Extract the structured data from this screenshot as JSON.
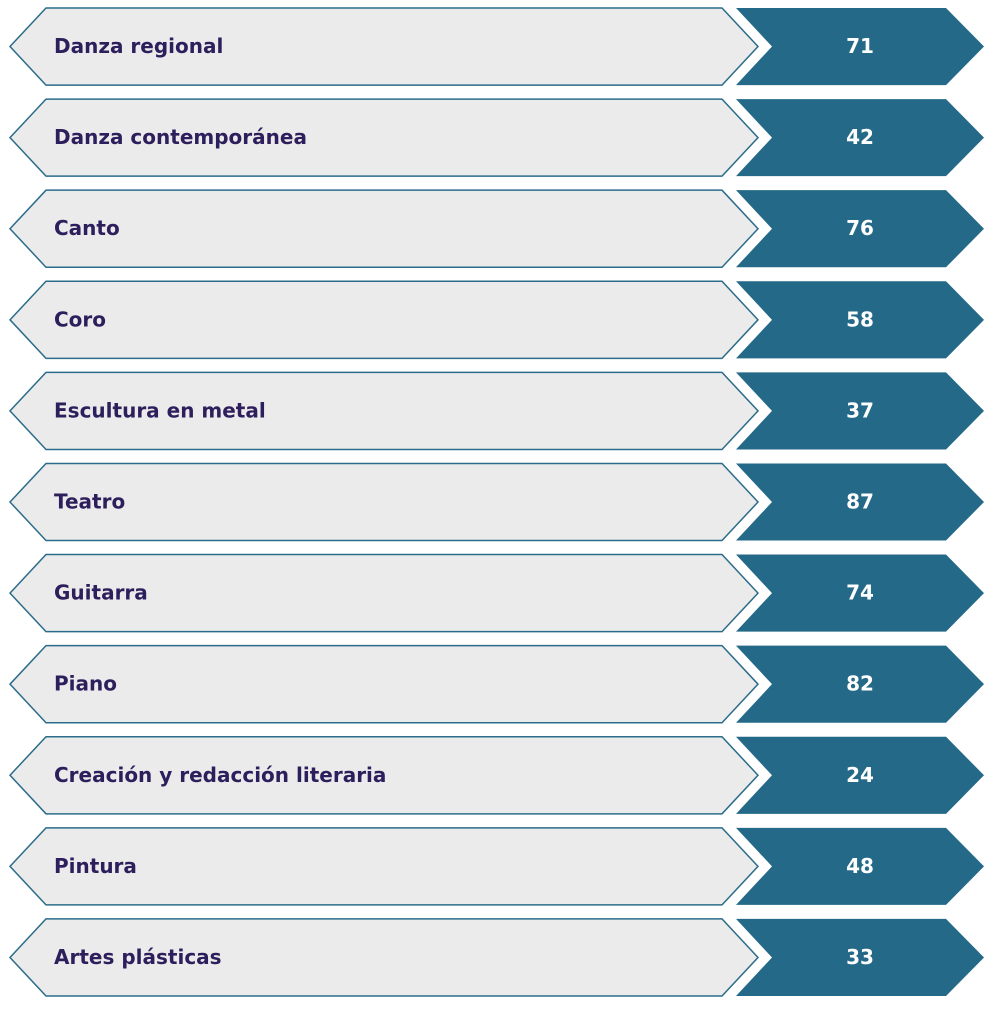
{
  "items": [
    {
      "label": "Danza regional",
      "value": 71
    },
    {
      "label": "Danza contemporánea",
      "value": 42
    },
    {
      "label": "Canto",
      "value": 76
    },
    {
      "label": "Coro",
      "value": 58
    },
    {
      "label": "Escultura en metal",
      "value": 37
    },
    {
      "label": "Teatro",
      "value": 87
    },
    {
      "label": "Guitarra",
      "value": 74
    },
    {
      "label": "Piano",
      "value": 82
    },
    {
      "label": "Creación y redacción literaria",
      "value": 24
    },
    {
      "label": "Pintura",
      "value": 48
    },
    {
      "label": "Artes plásticas",
      "value": 33
    }
  ]
}
